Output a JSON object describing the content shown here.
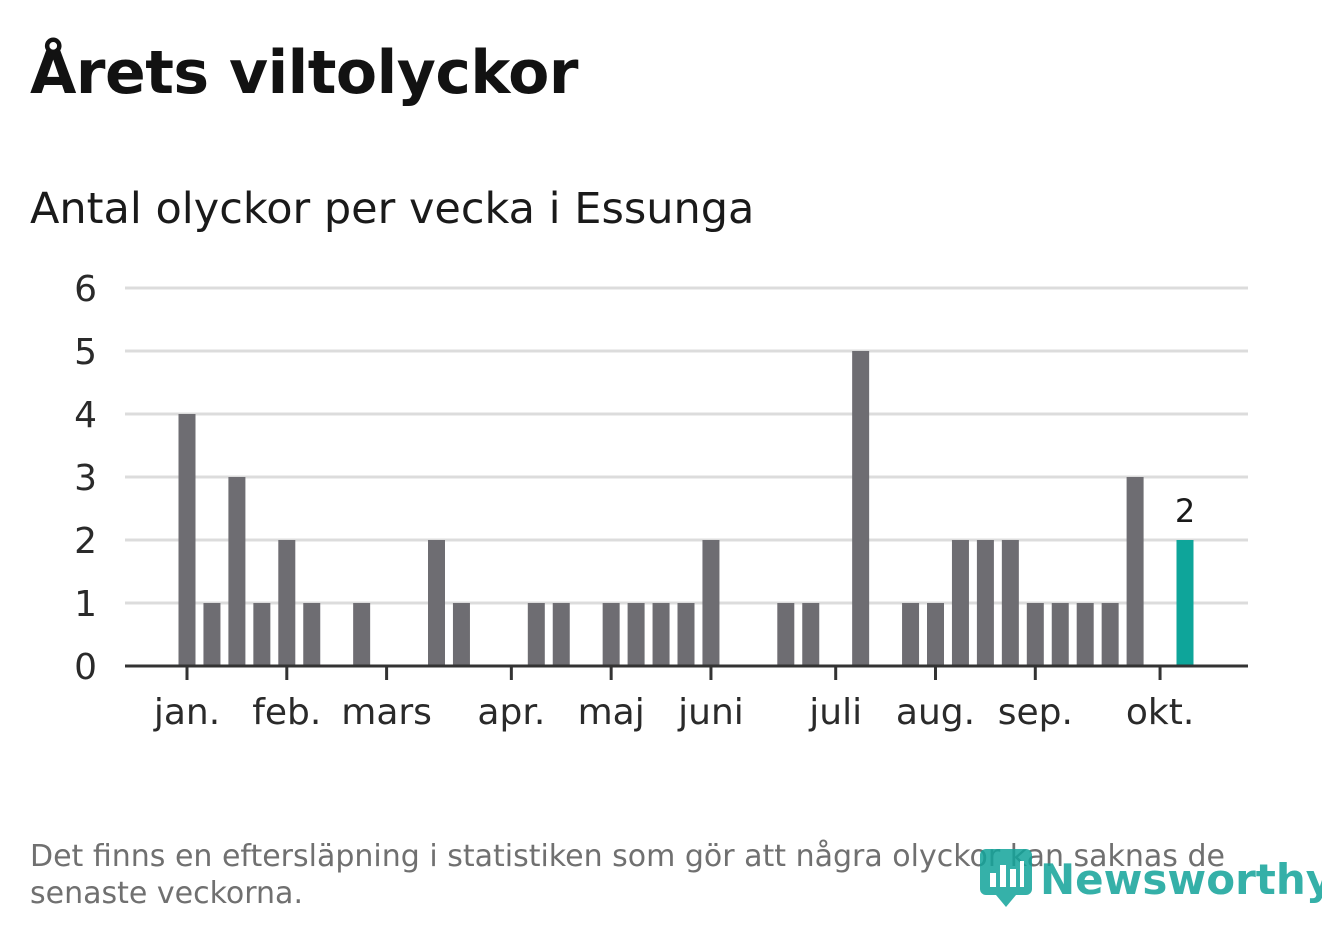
{
  "header": {
    "title": "Årets viltolyckor",
    "subtitle": "Antal olyckor per vecka i Essunga"
  },
  "chart_data": {
    "type": "bar",
    "title": "Årets viltolyckor",
    "subtitle": "Antal olyckor per vecka i Essunga",
    "xlabel": "",
    "ylabel": "",
    "ylim": [
      0,
      6
    ],
    "yticks": [
      0,
      1,
      2,
      3,
      4,
      5,
      6
    ],
    "grid": true,
    "weeks": [
      1,
      2,
      3,
      4,
      5,
      6,
      7,
      8,
      9,
      10,
      11,
      12,
      13,
      14,
      15,
      16,
      17,
      18,
      19,
      20,
      21,
      22,
      23,
      24,
      25,
      26,
      27,
      28,
      29,
      30,
      31,
      32,
      33,
      34,
      35,
      36,
      37,
      38,
      39,
      40,
      41
    ],
    "values": [
      4,
      1,
      3,
      1,
      2,
      1,
      0,
      1,
      0,
      0,
      2,
      1,
      0,
      0,
      1,
      1,
      0,
      1,
      1,
      1,
      1,
      2,
      0,
      0,
      1,
      1,
      0,
      5,
      0,
      1,
      1,
      2,
      2,
      2,
      1,
      1,
      1,
      1,
      3,
      0,
      2
    ],
    "highlight_index": 40,
    "highlight_label": "2",
    "month_labels": [
      {
        "label": "jan.",
        "week": 1
      },
      {
        "label": "feb.",
        "week": 5
      },
      {
        "label": "mars",
        "week": 9
      },
      {
        "label": "apr.",
        "week": 14
      },
      {
        "label": "maj",
        "week": 18
      },
      {
        "label": "juni",
        "week": 22
      },
      {
        "label": "juli",
        "week": 27
      },
      {
        "label": "aug.",
        "week": 31
      },
      {
        "label": "sep.",
        "week": 35
      },
      {
        "label": "okt.",
        "week": 40
      }
    ],
    "colors": {
      "bar": "#6e6d72",
      "highlight": "#0ea59a",
      "grid": "#dcdcdc",
      "axis": "#333333",
      "text": "#2a2a2a"
    }
  },
  "footnote": "Det finns en eftersläpning i statistiken som gör att några olyckor kan saknas de senaste veckorna.",
  "brand": {
    "name": "Newsworthy",
    "icon": "newsworthy-logo-icon",
    "color": "#12a39a"
  }
}
